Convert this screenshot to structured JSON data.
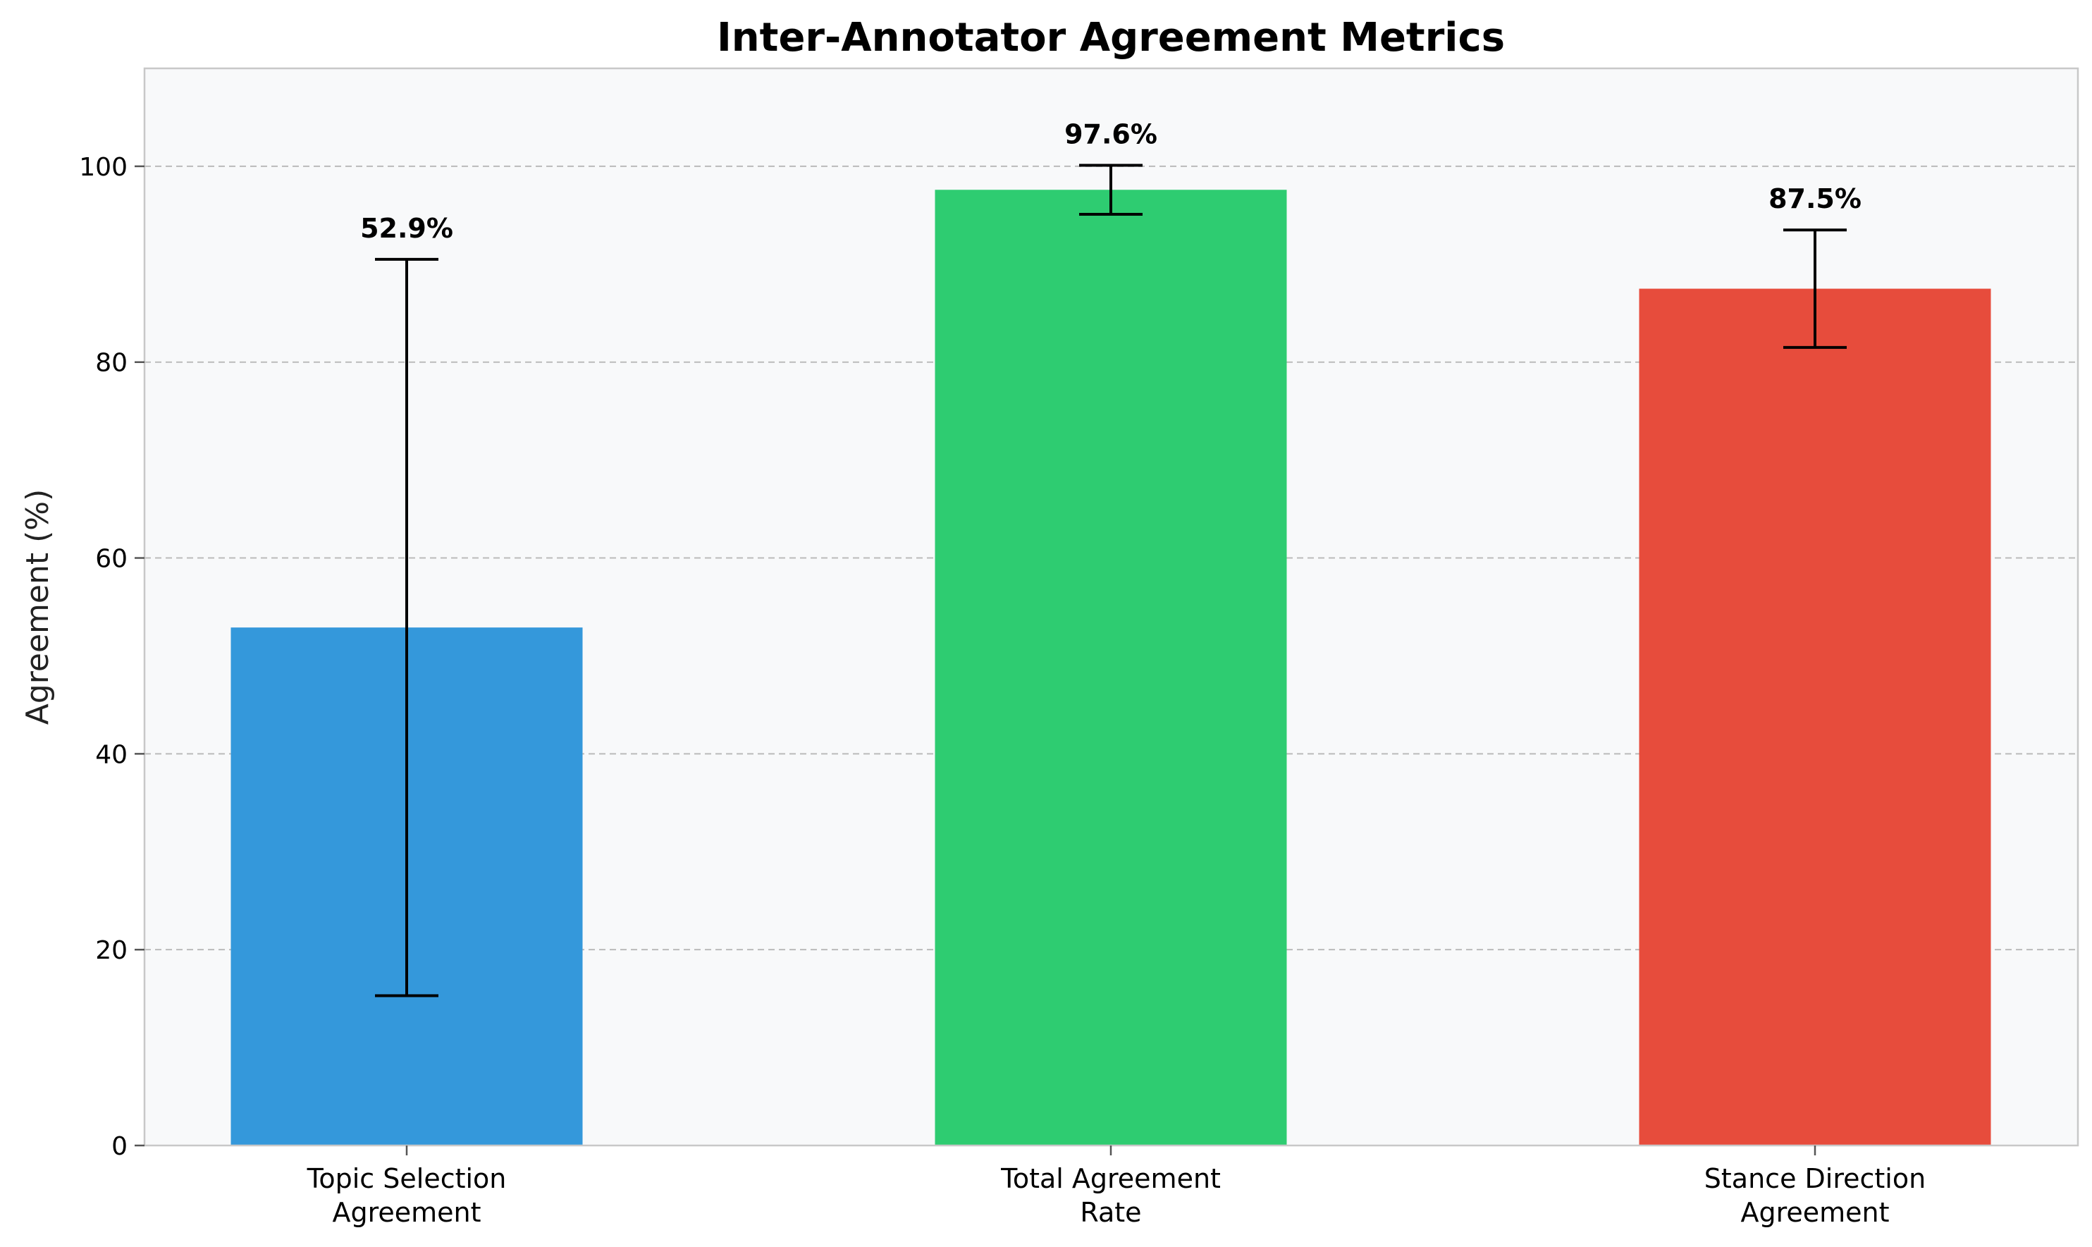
{
  "chart_data": {
    "type": "bar",
    "title": "Inter-Annotator Agreement Metrics",
    "xlabel": "",
    "ylabel": "Agreement (%)",
    "ylim": [
      0,
      110
    ],
    "yticks": [
      0,
      20,
      40,
      60,
      80,
      100
    ],
    "grid": "y-dashed",
    "categories": [
      [
        "Topic Selection",
        "Agreement"
      ],
      [
        "Total Agreement",
        "Rate"
      ],
      [
        "Stance Direction",
        "Agreement"
      ]
    ],
    "values": [
      52.9,
      97.6,
      87.5
    ],
    "error_low": [
      15.3,
      95.1,
      81.5
    ],
    "error_high": [
      90.5,
      100.1,
      93.5
    ],
    "data_labels": [
      "52.9%",
      "97.6%",
      "87.5%"
    ],
    "colors": [
      "#3498db",
      "#2ecc71",
      "#e74c3c"
    ],
    "plot_background": "#f8f9fa"
  }
}
